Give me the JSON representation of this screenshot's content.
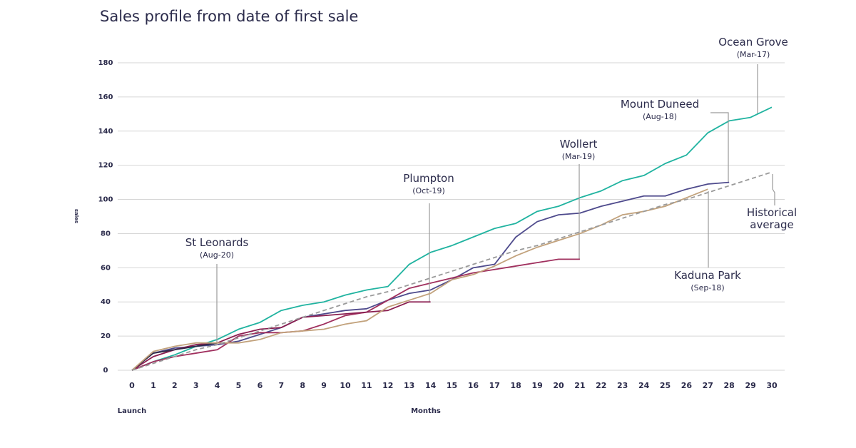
{
  "chart_data": {
    "type": "line",
    "title": "Sales profile from date of first sale",
    "xlabel": "Months",
    "x_origin_label": "Launch",
    "ylabel": "sales",
    "x": [
      0,
      1,
      2,
      3,
      4,
      5,
      6,
      7,
      8,
      9,
      10,
      11,
      12,
      13,
      14,
      15,
      16,
      17,
      18,
      19,
      20,
      21,
      22,
      23,
      24,
      25,
      26,
      27,
      28,
      29,
      30
    ],
    "xlim": [
      0,
      30
    ],
    "xticks": [
      0,
      1,
      2,
      3,
      4,
      5,
      6,
      7,
      8,
      9,
      10,
      11,
      12,
      13,
      14,
      15,
      16,
      17,
      18,
      19,
      20,
      21,
      22,
      23,
      24,
      25,
      26,
      27,
      28,
      29,
      30
    ],
    "ylim": [
      0,
      180
    ],
    "yticks": [
      0,
      20,
      40,
      60,
      80,
      100,
      120,
      140,
      160,
      180
    ],
    "grid": true,
    "series": [
      {
        "name": "Ocean Grove",
        "date": "(Mar-17)",
        "color": "#20b3a0",
        "values": [
          0,
          5,
          9,
          14,
          18,
          24,
          28,
          35,
          38,
          40,
          44,
          47,
          49,
          62,
          69,
          73,
          78,
          83,
          86,
          93,
          96,
          101,
          105,
          111,
          114,
          121,
          126,
          139,
          146,
          148,
          154
        ]
      },
      {
        "name": "Mount Duneed",
        "date": "(Aug-18)",
        "color": "#4e4a8c",
        "values": [
          0,
          10,
          13,
          14,
          15,
          17,
          21,
          25,
          31,
          33,
          35,
          36,
          41,
          45,
          47,
          53,
          60,
          62,
          78,
          87,
          91,
          92,
          96,
          99,
          102,
          102,
          106,
          109,
          110,
          null,
          null
        ]
      },
      {
        "name": "Wollert",
        "date": "(Mar-19)",
        "color": "#a0305e",
        "values": [
          0,
          5,
          8,
          10,
          12,
          20,
          22,
          22,
          23,
          27,
          32,
          34,
          41,
          48,
          51,
          54,
          57,
          59,
          61,
          63,
          65,
          65,
          null,
          null,
          null,
          null,
          null,
          null,
          null,
          null,
          null
        ]
      },
      {
        "name": "Plumpton",
        "date": "(Oct-19)",
        "color": "#8a1e50",
        "values": [
          0,
          8,
          12,
          15,
          16,
          21,
          24,
          25,
          31,
          32,
          33,
          34,
          35,
          40,
          40,
          null,
          null,
          null,
          null,
          null,
          null,
          null,
          null,
          null,
          null,
          null,
          null,
          null,
          null,
          null,
          null
        ]
      },
      {
        "name": "St Leonards",
        "date": "(Aug-20)",
        "color": "#2e2a48",
        "values": [
          0,
          10,
          12,
          14,
          16,
          null,
          null,
          null,
          null,
          null,
          null,
          null,
          null,
          null,
          null,
          null,
          null,
          null,
          null,
          null,
          null,
          null,
          null,
          null,
          null,
          null,
          null,
          null,
          null,
          null,
          null
        ]
      },
      {
        "name": "Kaduna Park",
        "date": "(Sep-18)",
        "color": "#c2a27c",
        "values": [
          0,
          11,
          14,
          16,
          16,
          16,
          18,
          22,
          23,
          24,
          27,
          29,
          37,
          41,
          45,
          53,
          56,
          61,
          67,
          72,
          76,
          80,
          85,
          91,
          93,
          96,
          101,
          106,
          null,
          null,
          null
        ]
      },
      {
        "name": "Historical average",
        "color": "#9a9a9a",
        "dashed": true,
        "values": [
          0,
          4,
          8,
          12,
          15,
          19,
          23,
          27,
          31,
          35,
          39,
          43,
          46,
          50,
          54,
          58,
          62,
          66,
          70,
          73,
          77,
          81,
          85,
          89,
          93,
          97,
          100,
          104,
          108,
          112,
          116
        ]
      }
    ]
  }
}
